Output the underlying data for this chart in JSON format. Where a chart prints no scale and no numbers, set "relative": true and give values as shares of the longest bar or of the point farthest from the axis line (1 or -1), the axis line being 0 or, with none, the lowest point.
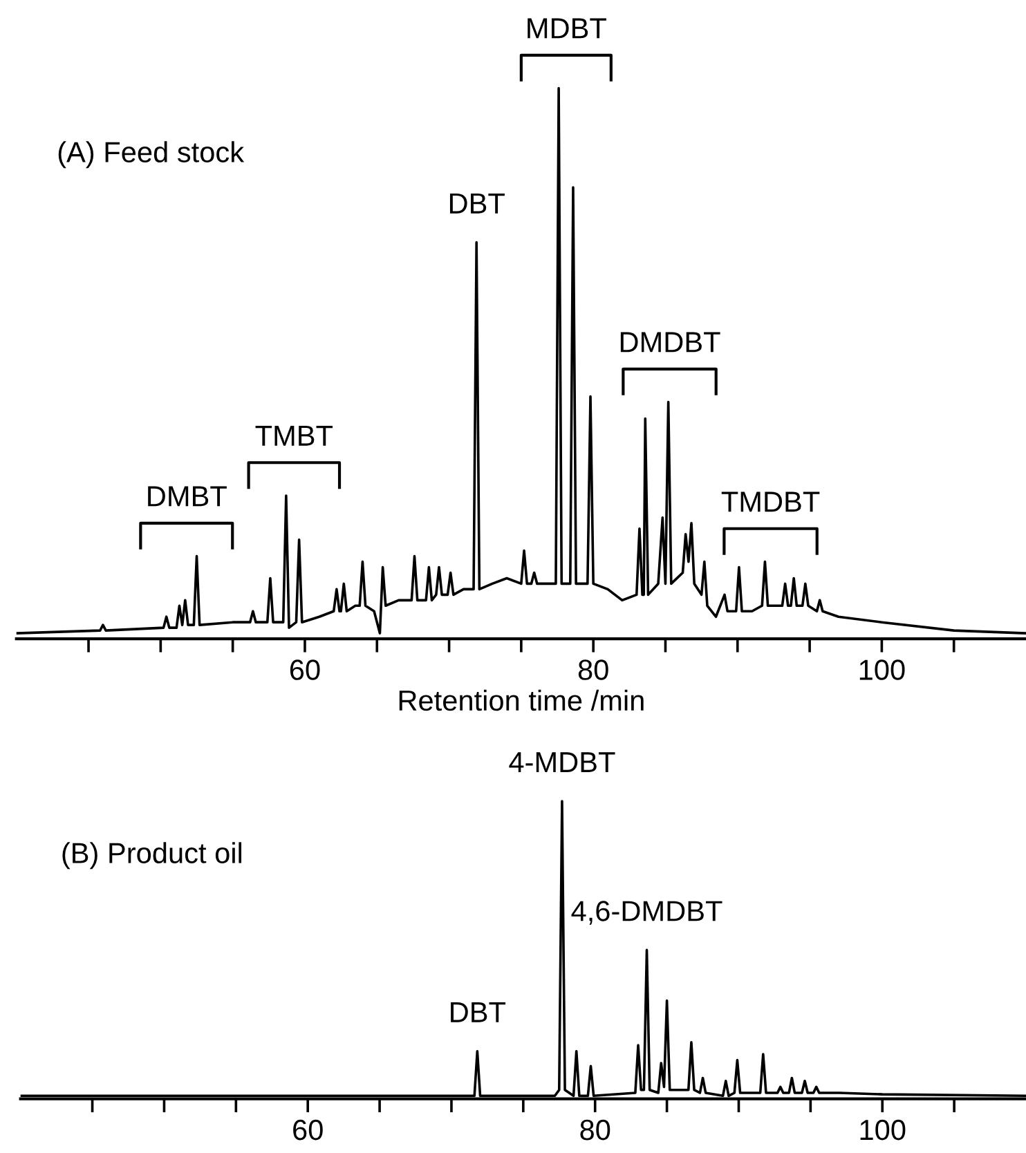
{
  "chart_data": [
    {
      "type": "line",
      "relative": true,
      "xlabel": "Retention time /min",
      "xlim": [
        40,
        110
      ],
      "xticks": [
        {
          "value": 45,
          "label": null
        },
        {
          "value": 50,
          "label": null
        },
        {
          "value": 55,
          "label": null
        },
        60,
        {
          "value": 65,
          "label": null
        },
        {
          "value": 70,
          "label": null
        },
        {
          "value": 75,
          "label": null
        },
        80,
        {
          "value": 85,
          "label": null
        },
        {
          "value": 90,
          "label": null
        },
        {
          "value": 95,
          "label": null
        },
        100,
        {
          "value": 105,
          "label": null
        }
      ],
      "tick_labels": "x",
      "grid": false,
      "legend": false,
      "marker": "none",
      "line_style": "solid",
      "annotations": [
        "(A) Feed stock",
        {
          "text": "DBT",
          "x": 71.9,
          "y": 0.72
        },
        "DMBT",
        "TMBT",
        "MDBT",
        "DMDBT",
        "TMDBT"
      ],
      "series": [
        {
          "color": "#000000",
          "x": [
            40,
            45.8,
            46,
            46.2,
            50.2,
            50.4,
            50.6,
            51.1,
            51.3,
            51.5,
            51.7,
            51.9,
            52.3,
            52.5,
            52.7,
            55,
            56.2,
            56.4,
            56.6,
            57.4,
            57.6,
            57.8,
            58.5,
            58.7,
            58.9,
            59.4,
            59.6,
            59.8,
            61,
            62.0,
            62.2,
            62.4,
            62.5,
            62.7,
            62.9,
            63.5,
            63.8,
            64.0,
            64.2,
            64.8,
            65.2,
            65.4,
            65.6,
            66.5,
            67.4,
            67.6,
            67.8,
            68.4,
            68.6,
            68.8,
            69.1,
            69.3,
            69.5,
            69.9,
            70.1,
            70.3,
            71.0,
            71.7,
            71.9,
            72.1,
            73,
            74,
            75.0,
            75.2,
            75.4,
            75.7,
            75.9,
            76.1,
            77.4,
            77.6,
            77.8,
            78.4,
            78.6,
            78.8,
            79.6,
            79.8,
            80.0,
            81,
            82,
            83.0,
            83.2,
            83.4,
            83.5,
            83.6,
            83.8,
            84.5,
            84.8,
            85.0,
            85.2,
            85.4,
            86.2,
            86.4,
            86.6,
            86.8,
            87.0,
            87.5,
            87.7,
            87.9,
            88.5,
            89.1,
            89.3,
            89.9,
            90.1,
            90.3,
            91,
            91.7,
            91.9,
            92.1,
            93.1,
            93.3,
            93.5,
            93.7,
            93.9,
            94.1,
            94.5,
            94.7,
            94.9,
            95.5,
            95.7,
            95.9,
            97,
            100,
            105,
            110
          ],
          "values": [
            0.01,
            0.015,
            0.025,
            0.015,
            0.02,
            0.04,
            0.02,
            0.02,
            0.06,
            0.025,
            0.07,
            0.025,
            0.025,
            0.15,
            0.025,
            0.03,
            0.03,
            0.05,
            0.03,
            0.03,
            0.11,
            0.03,
            0.03,
            0.26,
            0.02,
            0.03,
            0.18,
            0.03,
            0.04,
            0.05,
            0.09,
            0.05,
            0.05,
            0.1,
            0.05,
            0.06,
            0.06,
            0.14,
            0.06,
            0.05,
            0.01,
            0.13,
            0.06,
            0.07,
            0.07,
            0.15,
            0.07,
            0.07,
            0.13,
            0.07,
            0.08,
            0.13,
            0.08,
            0.08,
            0.12,
            0.08,
            0.09,
            0.09,
            0.72,
            0.09,
            0.1,
            0.11,
            0.1,
            0.16,
            0.1,
            0.1,
            0.12,
            0.1,
            0.1,
            1.0,
            0.1,
            0.1,
            0.82,
            0.1,
            0.1,
            0.44,
            0.1,
            0.09,
            0.07,
            0.08,
            0.2,
            0.08,
            0.08,
            0.4,
            0.08,
            0.1,
            0.22,
            0.1,
            0.43,
            0.1,
            0.12,
            0.19,
            0.14,
            0.21,
            0.1,
            0.08,
            0.14,
            0.06,
            0.04,
            0.08,
            0.05,
            0.05,
            0.13,
            0.05,
            0.05,
            0.06,
            0.14,
            0.06,
            0.06,
            0.1,
            0.06,
            0.06,
            0.11,
            0.06,
            0.06,
            0.1,
            0.06,
            0.05,
            0.07,
            0.05,
            0.04,
            0.03,
            0.015,
            0.01
          ]
        }
      ]
    },
    {
      "type": "line",
      "relative": true,
      "xlim": [
        40,
        110
      ],
      "xticks": [
        {
          "value": 45,
          "label": null
        },
        {
          "value": 50,
          "label": null
        },
        {
          "value": 55,
          "label": null
        },
        60,
        {
          "value": 65,
          "label": null
        },
        {
          "value": 70,
          "label": null
        },
        {
          "value": 75,
          "label": null
        },
        80,
        {
          "value": 85,
          "label": null
        },
        {
          "value": 90,
          "label": null
        },
        {
          "value": 95,
          "label": null
        },
        100,
        {
          "value": 105,
          "label": null
        }
      ],
      "tick_labels": "x",
      "grid": false,
      "legend": false,
      "marker": "none",
      "line_style": "solid",
      "annotations": [
        "(B) Product oil",
        {
          "text": "DBT",
          "x": 71.8,
          "y": 0.16
        },
        {
          "text": "4-MDBT",
          "x": 77.7,
          "y": 1.0
        },
        {
          "text": "4,6-DMDBT",
          "x": 83.6,
          "y": 0.5
        }
      ],
      "series": [
        {
          "color": "#000000",
          "x": [
            40,
            71.6,
            71.8,
            72.0,
            77.2,
            77.5,
            77.7,
            77.9,
            78.5,
            78.7,
            78.9,
            79.5,
            79.7,
            79.9,
            82.8,
            83.0,
            83.2,
            83.4,
            83.6,
            83.8,
            84.4,
            84.6,
            84.8,
            85.0,
            85.2,
            86.5,
            86.7,
            86.9,
            87.3,
            87.5,
            87.7,
            88.9,
            89.1,
            89.3,
            89.7,
            89.9,
            90.1,
            91.5,
            91.7,
            91.9,
            92.7,
            92.9,
            93.1,
            93.5,
            93.7,
            93.9,
            94.4,
            94.6,
            94.8,
            95.2,
            95.4,
            95.6,
            97,
            100,
            110
          ],
          "values": [
            0.01,
            0.01,
            0.16,
            0.01,
            0.01,
            0.03,
            1.0,
            0.03,
            0.01,
            0.16,
            0.01,
            0.01,
            0.11,
            0.01,
            0.02,
            0.18,
            0.03,
            0.03,
            0.5,
            0.03,
            0.02,
            0.12,
            0.04,
            0.33,
            0.03,
            0.03,
            0.19,
            0.03,
            0.02,
            0.07,
            0.02,
            0.01,
            0.06,
            0.01,
            0.02,
            0.13,
            0.02,
            0.02,
            0.15,
            0.02,
            0.02,
            0.04,
            0.02,
            0.02,
            0.07,
            0.02,
            0.02,
            0.06,
            0.02,
            0.02,
            0.04,
            0.02,
            0.02,
            0.015,
            0.01
          ]
        }
      ]
    }
  ]
}
